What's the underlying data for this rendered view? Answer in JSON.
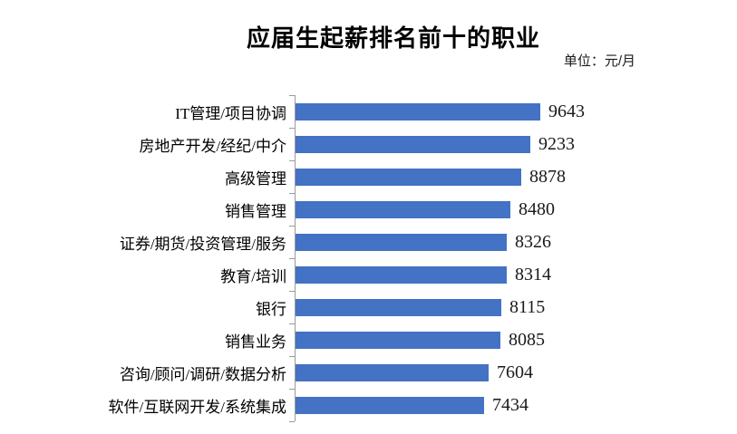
{
  "page": {
    "background": "#ffffff"
  },
  "chart_data": {
    "type": "bar",
    "orientation": "horizontal",
    "title": "应届生起薪排名前十的职业",
    "unit_label": "单位：元/月",
    "categories": [
      "IT管理/项目协调",
      "房地产开发/经纪/中介",
      "高级管理",
      "销售管理",
      "证券/期货/投资管理/服务",
      "教育/培训",
      "银行",
      "销售业务",
      "咨询/顾问/调研/数据分析",
      "软件/互联网开发/系统集成"
    ],
    "values": [
      9643,
      9233,
      8878,
      8480,
      8326,
      8314,
      8115,
      8085,
      7604,
      7434
    ],
    "xlabel": "",
    "ylabel": "",
    "xlim": [
      0,
      9643
    ],
    "baseline": 0,
    "gridlines": false,
    "legend": false,
    "data_labels": true,
    "bar_color": "#4472C4",
    "axis_color": "#9b9b9b",
    "text_color": "#1a1a1a"
  }
}
